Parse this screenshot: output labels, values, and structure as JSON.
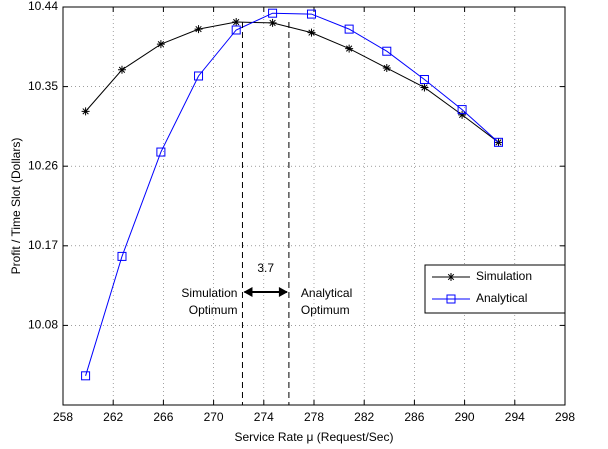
{
  "chart_data": {
    "type": "line",
    "xlabel": "Service Rate μ (Request/Sec)",
    "ylabel": "Profit / Time Slot (Dollars)",
    "xlim": [
      258,
      298
    ],
    "xticks": [
      258,
      262,
      266,
      270,
      274,
      278,
      282,
      286,
      290,
      294,
      298
    ],
    "ylim": [
      9.99,
      10.44
    ],
    "yticks": [
      10.08,
      10.17,
      10.26,
      10.35,
      10.44
    ],
    "grid": true,
    "legend": "lower right",
    "series": [
      {
        "name": "Simulation",
        "color": "#000000",
        "marker": "star",
        "x": [
          259.8,
          262.7,
          265.8,
          268.8,
          271.8,
          274.7,
          277.8,
          280.8,
          283.8,
          286.8,
          289.8,
          292.7
        ],
        "values": [
          10.322,
          10.369,
          10.398,
          10.415,
          10.423,
          10.422,
          10.411,
          10.393,
          10.371,
          10.349,
          10.318,
          10.287
        ]
      },
      {
        "name": "Analytical",
        "color": "#0000ff",
        "marker": "square",
        "x": [
          259.8,
          262.7,
          265.8,
          268.8,
          271.8,
          274.7,
          277.8,
          280.8,
          283.8,
          286.8,
          289.8,
          292.7
        ],
        "values": [
          10.023,
          10.158,
          10.276,
          10.362,
          10.414,
          10.433,
          10.432,
          10.415,
          10.39,
          10.358,
          10.324,
          10.287
        ]
      }
    ],
    "annotations": {
      "optimum_x": [
        272.3,
        276.0
      ],
      "gap": "3.7",
      "left_label": [
        "Simulation",
        "Optimum"
      ],
      "right_label": [
        "Analytical",
        "Optimum"
      ]
    }
  }
}
